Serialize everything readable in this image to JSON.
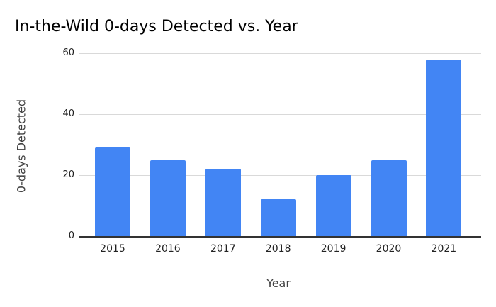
{
  "title": "In-the-Wild 0-days Detected vs. Year",
  "chart_data": {
    "type": "bar",
    "title": "In-the-Wild 0-days Detected vs. Year",
    "categories": [
      "2015",
      "2016",
      "2017",
      "2018",
      "2019",
      "2020",
      "2021"
    ],
    "values": [
      29,
      25,
      22,
      12,
      20,
      25,
      58
    ],
    "xlabel": "Year",
    "ylabel": "0-days Detected",
    "ylim": [
      0,
      60
    ],
    "yticks": [
      0,
      20,
      40,
      60
    ],
    "grid": true,
    "legend_position": "none",
    "bar_color": "#4285f4",
    "gridline_color": "#d9d9d9",
    "axis_line_color": "#333333",
    "background_color": "#ffffff"
  }
}
